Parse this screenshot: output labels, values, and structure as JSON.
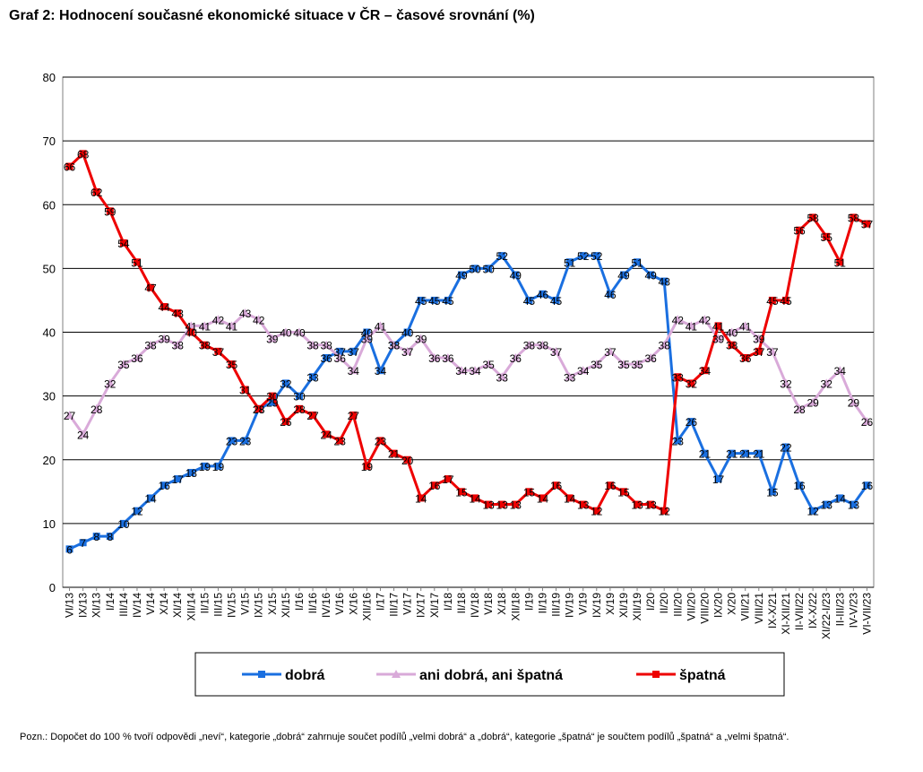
{
  "chart_data": {
    "type": "line",
    "title": "Graf 2: Hodnocení současné ekonomické situace v ČR – časové srovnání (%)",
    "note": "Pozn.: Dopočet do 100 % tvoří odpovědi „neví“, kategorie „dobrá“ zahrnuje součet podílů „velmi dobrá“ a „dobrá“, kategorie „špatná“ je součtem podílů „špatná“ a „velmi špatná“.",
    "categories": [
      "VI/13",
      "IX/13",
      "XI/13",
      "I/14",
      "III/14",
      "IV/14",
      "V/14",
      "X/14",
      "XI/14",
      "XII/14",
      "II/15",
      "III/15",
      "IV/15",
      "V/15",
      "IX/15",
      "X/15",
      "XI/15",
      "I/16",
      "II/16",
      "IV/16",
      "V/16",
      "X/16",
      "XII/16",
      "I/17",
      "III/17",
      "V/17",
      "IX/17",
      "XI/17",
      "I/18",
      "II/18",
      "IV/18",
      "V/18",
      "X/18",
      "XII/18",
      "I/19",
      "II/19",
      "III/19",
      "IV/19",
      "V/19",
      "IX/19",
      "X/19",
      "XI/19",
      "XII/19",
      "I/20",
      "II/20",
      "III/20",
      "VII/20",
      "VIII/20",
      "IX/20",
      "X/20",
      "VII/21",
      "VIII/21",
      "IX-X/21",
      "XI-XII/21",
      "II-VII/22",
      "IX-X/22",
      "XI/22-I/23",
      "II-III/23",
      "IV-V/23",
      "VI-VII/23"
    ],
    "series": [
      {
        "name": "dobrá",
        "color": "#1a6fe0",
        "marker": "square",
        "values": [
          6,
          7,
          8,
          8,
          10,
          12,
          14,
          16,
          17,
          18,
          19,
          19,
          23,
          23,
          28,
          29,
          32,
          30,
          33,
          36,
          37,
          37,
          40,
          34,
          38,
          40,
          45,
          45,
          45,
          49,
          50,
          50,
          52,
          49,
          45,
          46,
          45,
          51,
          52,
          52,
          46,
          49,
          51,
          49,
          48,
          23,
          26,
          21,
          17,
          21,
          21,
          21,
          15,
          22,
          16,
          12,
          13,
          14,
          13,
          16
        ]
      },
      {
        "name": "ani dobrá, ani špatná",
        "color": "#d9aad9",
        "marker": "triangle",
        "values": [
          27,
          24,
          28,
          32,
          35,
          36,
          38,
          39,
          38,
          41,
          41,
          42,
          41,
          43,
          42,
          39,
          40,
          40,
          38,
          38,
          36,
          34,
          39,
          41,
          38,
          37,
          39,
          36,
          36,
          34,
          34,
          35,
          33,
          36,
          38,
          38,
          37,
          33,
          34,
          35,
          37,
          35,
          35,
          36,
          38,
          42,
          41,
          42,
          39,
          40,
          41,
          39,
          37,
          32,
          28,
          29,
          32,
          34,
          29,
          26
        ]
      },
      {
        "name": "špatná",
        "color": "#ee0000",
        "marker": "square",
        "values": [
          66,
          68,
          62,
          59,
          54,
          51,
          47,
          44,
          43,
          40,
          38,
          37,
          35,
          31,
          28,
          30,
          26,
          28,
          27,
          24,
          23,
          27,
          19,
          23,
          21,
          20,
          14,
          16,
          17,
          15,
          14,
          13,
          13,
          13,
          15,
          14,
          16,
          14,
          13,
          12,
          16,
          15,
          13,
          13,
          12,
          33,
          32,
          34,
          41,
          38,
          36,
          37,
          45,
          45,
          56,
          58,
          55,
          51,
          58,
          57
        ]
      }
    ],
    "ylim": [
      0,
      80
    ],
    "yticks": [
      0,
      10,
      20,
      30,
      40,
      50,
      60,
      70,
      80
    ],
    "grid": true
  }
}
